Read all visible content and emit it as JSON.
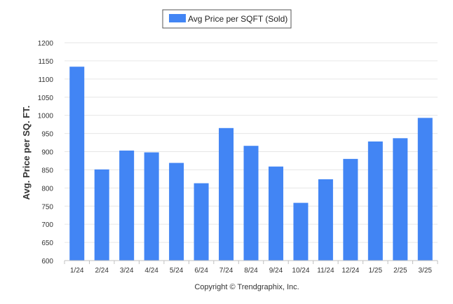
{
  "chart_data": {
    "type": "bar",
    "categories": [
      "1/24",
      "2/24",
      "3/24",
      "4/24",
      "5/24",
      "6/24",
      "7/24",
      "8/24",
      "9/24",
      "10/24",
      "11/24",
      "12/24",
      "1/25",
      "2/25",
      "3/25"
    ],
    "series": [
      {
        "name": "Avg Price per SQFT (Sold)",
        "values": [
          1134,
          851,
          903,
          898,
          869,
          813,
          965,
          916,
          859,
          759,
          824,
          880,
          928,
          937,
          993
        ]
      }
    ],
    "ylabel": "Avg. Price per SQ. FT.",
    "xlabel": "",
    "ylim": [
      600,
      1200
    ],
    "yticks": [
      600,
      650,
      700,
      750,
      800,
      850,
      900,
      950,
      1000,
      1050,
      1100,
      1150,
      1200
    ],
    "grid": true,
    "legend_position": "top-center",
    "bar_color": "#4285f4"
  },
  "footer": {
    "copyright": "Copyright © Trendgraphix, Inc."
  }
}
